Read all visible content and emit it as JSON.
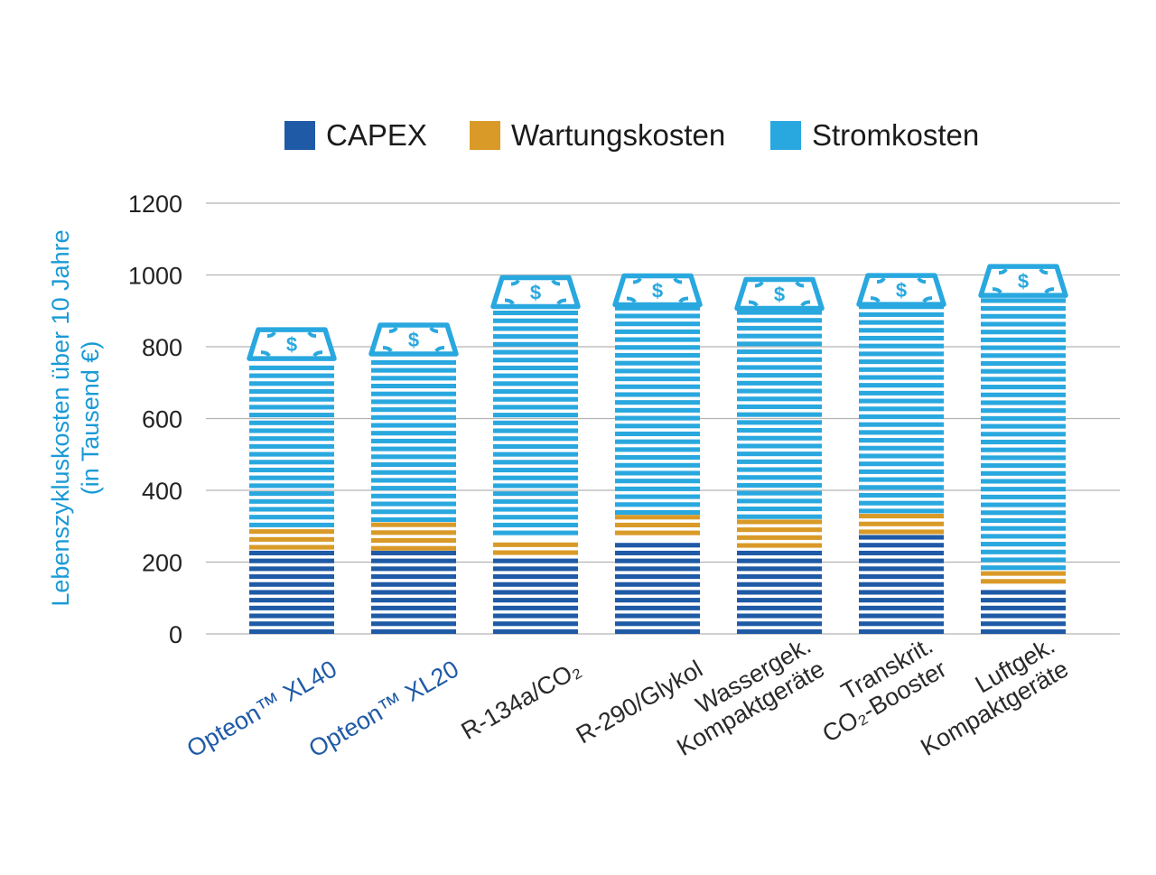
{
  "chart_data": {
    "type": "bar",
    "stacked": true,
    "ylabel_lines": [
      "Lebenszykluskosten über 10 Jahre",
      "(in Tausend €)"
    ],
    "ylim": [
      0,
      1200
    ],
    "yticks": [
      "0",
      "200",
      "400",
      "600",
      "800",
      "1000",
      "1200"
    ],
    "grid": true,
    "legend_position": "top",
    "categories": [
      {
        "lines": [
          "Opteon™ XL40"
        ],
        "highlight": true
      },
      {
        "lines": [
          "Opteon™ XL20"
        ],
        "highlight": true
      },
      {
        "lines": [
          "R-134a/CO₂"
        ],
        "highlight": false
      },
      {
        "lines": [
          "R-290/Glykol"
        ],
        "highlight": false
      },
      {
        "lines": [
          "Wassergek.",
          "Kompaktgeräte"
        ],
        "highlight": false
      },
      {
        "lines": [
          "Transkrit.",
          "CO₂-Booster"
        ],
        "highlight": false
      },
      {
        "lines": [
          "Luftgek.",
          "Kompaktgeräte"
        ],
        "highlight": false
      }
    ],
    "series": [
      {
        "name": "CAPEX",
        "color": "#1f5aa6",
        "values": [
          235,
          232,
          220,
          275,
          240,
          278,
          140
        ]
      },
      {
        "name": "Wartungskosten",
        "color": "#d99a28",
        "values": [
          62,
          80,
          55,
          57,
          80,
          58,
          38
        ]
      },
      {
        "name": "Stromkosten",
        "color": "#29a8df",
        "values": [
          470,
          468,
          637,
          585,
          587,
          582,
          765
        ]
      }
    ],
    "colors": {
      "highlight_label": "#1f5aa6",
      "normal_label": "#2a2a2a",
      "grid": "#b3b3b3",
      "money_icon": "#29a8df"
    },
    "money_icon_symbol": "$"
  }
}
